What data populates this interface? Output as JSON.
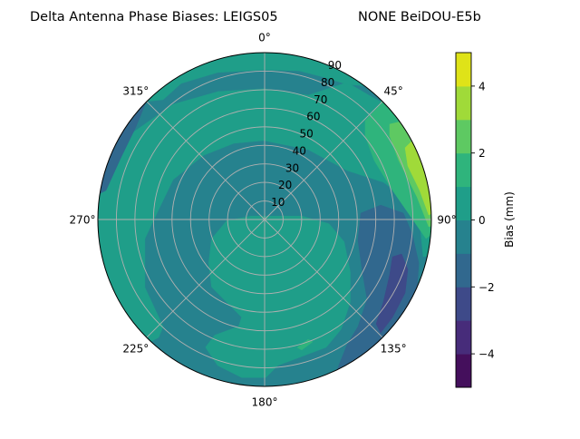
{
  "chart_data": {
    "type": "contour",
    "projection": "polar",
    "title_left": "Delta Antenna Phase Biases: LEIGS05",
    "title_right": "NONE BeiDOU-E5b",
    "angle_ticks": [
      {
        "az": 0,
        "label": "0°"
      },
      {
        "az": 45,
        "label": "45°"
      },
      {
        "az": 90,
        "label": "90°"
      },
      {
        "az": 135,
        "label": "135°"
      },
      {
        "az": 180,
        "label": "180°"
      },
      {
        "az": 225,
        "label": "225°"
      },
      {
        "az": 270,
        "label": "270°"
      },
      {
        "az": 315,
        "label": "315°"
      }
    ],
    "radial_ticks": [
      {
        "r": 10,
        "label": "10"
      },
      {
        "r": 20,
        "label": "20"
      },
      {
        "r": 30,
        "label": "30"
      },
      {
        "r": 40,
        "label": "40"
      },
      {
        "r": 50,
        "label": "50"
      },
      {
        "r": 60,
        "label": "60"
      },
      {
        "r": 70,
        "label": "70"
      },
      {
        "r": 80,
        "label": "80"
      },
      {
        "r": 90,
        "label": "90"
      }
    ],
    "rlim": [
      0,
      90
    ],
    "grid": true,
    "colorbar": {
      "label": "Bias (mm)",
      "levels": [
        -5,
        -4,
        -3,
        -2,
        -1,
        0,
        1,
        2,
        3,
        4,
        5
      ],
      "colors": [
        "#440f5c",
        "#472c7a",
        "#3e4a89",
        "#31688e",
        "#26828e",
        "#1f9e89",
        "#2fb47c",
        "#5ec962",
        "#a0da39",
        "#dfe318"
      ],
      "ticks": [
        {
          "v": 4,
          "label": "4"
        },
        {
          "v": 2,
          "label": "2"
        },
        {
          "v": 0,
          "label": "0"
        },
        {
          "v": -2,
          "label": "−2"
        },
        {
          "v": -4,
          "label": "−4"
        }
      ]
    },
    "background_level": -0.5,
    "regions_note": "points are [east, north] in zenith-degree units",
    "regions": [
      {
        "level": 0.5,
        "points": [
          [
            -70.9,
            -70.9
          ],
          [
            -94,
            -34
          ],
          [
            -100,
            0
          ],
          [
            -94,
            34
          ],
          [
            -85.1,
            24.9
          ],
          [
            -70.4,
            47.4
          ],
          [
            -49.4,
            62.1
          ],
          [
            -25,
            69
          ],
          [
            -0.5,
            70.5
          ],
          [
            23.5,
            67
          ],
          [
            44.5,
            73.9
          ],
          [
            56.3,
            67
          ],
          [
            86.6,
            50
          ],
          [
            100,
            0
          ],
          [
            98.5,
            -17.4
          ],
          [
            85.6,
            -20.1
          ],
          [
            83.7,
            -1.5
          ],
          [
            77.3,
            10.3
          ],
          [
            64.1,
            20.1
          ],
          [
            44.5,
            26.4
          ],
          [
            23.5,
            37.7
          ],
          [
            -0.5,
            42.6
          ],
          [
            -16.6,
            41.1
          ],
          [
            -32.8,
            34.7
          ],
          [
            -49.4,
            21.5
          ],
          [
            -57.2,
            5.4
          ],
          [
            -64.6,
            -10.3
          ],
          [
            -64.6,
            -36.7
          ],
          [
            -54.8,
            -57.7
          ],
          [
            -57.2,
            -63.6
          ]
        ]
      },
      {
        "level": 0.5,
        "points": [
          [
            -70.7,
            70.7
          ],
          [
            -34.2,
            94
          ],
          [
            0,
            100
          ],
          [
            34.2,
            94
          ],
          [
            70.7,
            70.7
          ],
          [
            44.5,
            72.9
          ],
          [
            31.8,
            76.8
          ],
          [
            18.6,
            80.2
          ],
          [
            -0.5,
            80.7
          ],
          [
            -25.4,
            79.3
          ],
          [
            -45,
            73.4
          ],
          [
            -54.8,
            64.6
          ],
          [
            -64.6,
            63.6
          ]
        ]
      },
      {
        "level": 0.5,
        "points": [
          [
            -28.6,
            -10.4
          ],
          [
            -20.5,
            -0.7
          ],
          [
            -7.5,
            1.8
          ],
          [
            20.2,
            1.8
          ],
          [
            34.8,
            -2.3
          ],
          [
            42.9,
            -12
          ],
          [
            46.2,
            -28.3
          ],
          [
            46.2,
            -44.6
          ],
          [
            41.3,
            -59.2
          ],
          [
            33.2,
            -68.9
          ],
          [
            20.2,
            -73.8
          ],
          [
            7.2,
            -78.7
          ],
          [
            0.7,
            -85.2
          ],
          [
            -12.4,
            -85.2
          ],
          [
            -25.4,
            -78.7
          ],
          [
            -31.9,
            -68.9
          ],
          [
            -27,
            -62.4
          ],
          [
            -14,
            -57.6
          ],
          [
            -12.4,
            -52.7
          ],
          [
            -18.9,
            -46.2
          ],
          [
            -28.6,
            -36.4
          ],
          [
            -30.2,
            -23.4
          ]
        ]
      },
      {
        "level": -1.5,
        "points": [
          [
            -86.6,
            50
          ],
          [
            -57.4,
            81.9
          ],
          [
            -64.1,
            63.1
          ],
          [
            -69.5,
            49.9
          ],
          [
            -77.8,
            32.8
          ],
          [
            -85.6,
            15.7
          ],
          [
            -99.6,
            8.7
          ]
        ]
      },
      {
        "level": -1.5,
        "points": [
          [
            51.9,
            3.4
          ],
          [
            62.6,
            7.8
          ],
          [
            74.9,
            3.4
          ],
          [
            79.7,
            -7.8
          ],
          [
            83.2,
            -23.5
          ],
          [
            82.2,
            -38.2
          ],
          [
            77.3,
            -50.4
          ],
          [
            34.2,
            -94
          ],
          [
            40.6,
            -77.3
          ],
          [
            44.5,
            -67.5
          ],
          [
            50.4,
            -57.7
          ],
          [
            55.3,
            -43.1
          ],
          [
            52.8,
            -28.4
          ],
          [
            50.4,
            -11.3
          ]
        ]
      },
      {
        "level": -2.5,
        "points": [
          [
            69,
            -20.1
          ],
          [
            73.9,
            -18.6
          ],
          [
            77.3,
            -26.9
          ],
          [
            75.8,
            -39.6
          ],
          [
            69,
            -52.8
          ],
          [
            62.6,
            -61.2
          ],
          [
            60.2,
            -56.3
          ],
          [
            64.1,
            -44.5
          ],
          [
            67.5,
            -29.8
          ]
        ]
      },
      {
        "level": 1.5,
        "points": [
          [
            54.3,
            53.3
          ],
          [
            62.6,
            62.1
          ],
          [
            64.3,
            76.6
          ],
          [
            100,
            0
          ],
          [
            87.1,
            -10.3
          ],
          [
            69,
            15.7
          ],
          [
            59.2,
            31.8
          ],
          [
            54.3,
            45
          ]
        ]
      },
      {
        "level": 2.5,
        "points": [
          [
            67.5,
            51.4
          ],
          [
            75.8,
            53.3
          ],
          [
            76.6,
            64.3
          ],
          [
            100,
            0
          ],
          [
            88.6,
            -3.9
          ],
          [
            82.2,
            12.2
          ],
          [
            72.4,
            31.8
          ],
          [
            67.5,
            45
          ]
        ]
      },
      {
        "level": 3.5,
        "points": [
          [
            75.8,
            38.7
          ],
          [
            78.8,
            41.6
          ],
          [
            86.6,
            50
          ],
          [
            99.6,
            8.7
          ],
          [
            88.6,
            2.4
          ],
          [
            83.7,
            15.7
          ],
          [
            77.3,
            28.9
          ]
        ]
      },
      {
        "level": 1.5,
        "points": [
          [
            17.6,
            -69
          ],
          [
            23.5,
            -64.6
          ],
          [
            25.9,
            -66
          ],
          [
            20,
            -70.4
          ]
        ]
      }
    ]
  }
}
